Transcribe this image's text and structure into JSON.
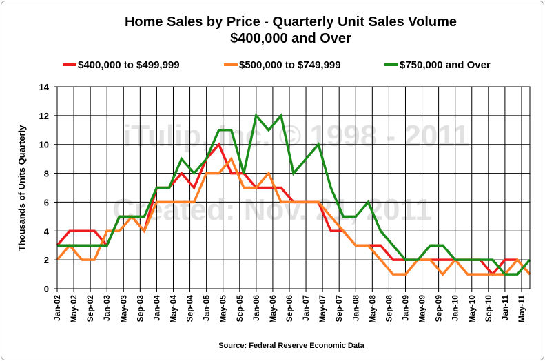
{
  "chart_data": {
    "type": "line",
    "title": [
      "Home Sales by Price - Quarterly Unit Sales Volume",
      "$400,000 and Over"
    ],
    "ylabel": "Thousands of Units Quarterly",
    "xlabel": "",
    "ylim": [
      0,
      14
    ],
    "yticks": [
      0,
      2,
      4,
      6,
      8,
      10,
      12,
      14
    ],
    "grid": true,
    "legend_position": "top",
    "source": "Source: Federal Reserve Economic Data",
    "watermark": [
      "iTulip, Inc. © 1998 - 2011",
      "Created: Nov. 21, 2011"
    ],
    "x": [
      "Jan-02",
      "Apr-02",
      "Jul-02",
      "Oct-02",
      "Jan-03",
      "Apr-03",
      "Jul-03",
      "Oct-03",
      "Jan-04",
      "Apr-04",
      "Jul-04",
      "Oct-04",
      "Jan-05",
      "Apr-05",
      "Jul-05",
      "Oct-05",
      "Jan-06",
      "Apr-06",
      "Jul-06",
      "Oct-06",
      "Jan-07",
      "Apr-07",
      "Jul-07",
      "Oct-07",
      "Jan-08",
      "Apr-08",
      "Jul-08",
      "Oct-08",
      "Jan-09",
      "Apr-09",
      "Jul-09",
      "Oct-09",
      "Jan-10",
      "Apr-10",
      "Jul-10",
      "Oct-10",
      "Jan-11",
      "Apr-11",
      "Jul-11"
    ],
    "x_tick_labels": [
      "Jan-02",
      "May-02",
      "Sep-02",
      "Jan-03",
      "May-03",
      "Sep-03",
      "Jan-04",
      "May-04",
      "Sep-04",
      "Jan-05",
      "May-05",
      "Sep-05",
      "Jan-06",
      "May-06",
      "Sep-06",
      "Jan-07",
      "May-07",
      "Sep-07",
      "Jan-08",
      "May-08",
      "Sep-08",
      "Jan-09",
      "May-09",
      "Sep-09",
      "Jan-10",
      "May-10",
      "Sep-10",
      "Jan-11",
      "May-11"
    ],
    "series": [
      {
        "name": "$400,000 to $499,999",
        "color": "#ee1c1c",
        "values": [
          3,
          4,
          4,
          4,
          3,
          5,
          5,
          4,
          7,
          7,
          8,
          7,
          9,
          10,
          8,
          8,
          7,
          7,
          7,
          6,
          6,
          6,
          4,
          4,
          3,
          3,
          3,
          2,
          2,
          2,
          2,
          2,
          2,
          2,
          2,
          1,
          2,
          2,
          1
        ]
      },
      {
        "name": "$500,000 to $749,999",
        "color": "#ff7f27",
        "values": [
          2,
          3,
          2,
          2,
          4,
          4,
          5,
          4,
          6,
          6,
          6,
          6,
          8,
          8,
          9,
          7,
          7,
          8,
          6,
          6,
          6,
          6,
          5,
          4,
          3,
          3,
          2,
          1,
          1,
          2,
          2,
          1,
          2,
          1,
          1,
          1,
          1,
          2,
          1
        ]
      },
      {
        "name": "$750,000 and Over",
        "color": "#1a8c1a",
        "values": [
          3,
          3,
          3,
          3,
          3,
          5,
          5,
          5,
          7,
          7,
          9,
          8,
          9,
          11,
          11,
          8,
          12,
          11,
          12,
          8,
          9,
          10,
          7,
          5,
          5,
          6,
          4,
          3,
          2,
          2,
          3,
          3,
          2,
          2,
          2,
          2,
          1,
          1,
          2
        ]
      }
    ]
  }
}
